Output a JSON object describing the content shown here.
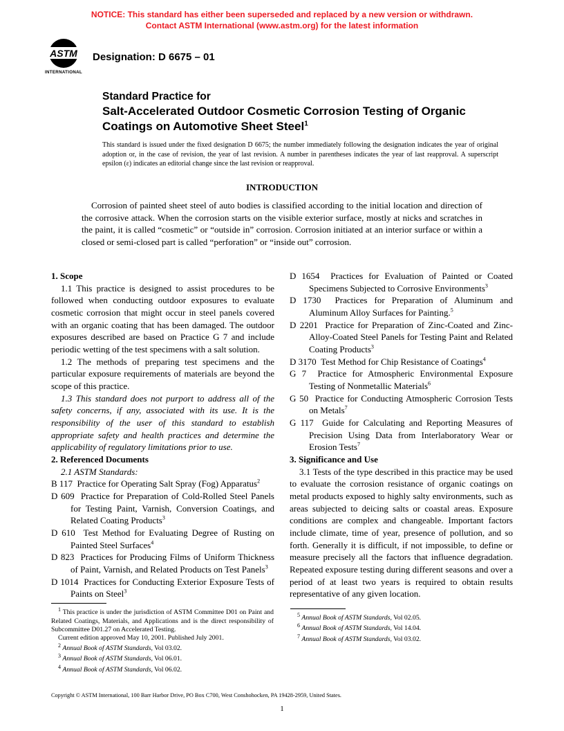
{
  "notice": {
    "line1": "NOTICE: This standard has either been superseded and replaced by a new version or withdrawn.",
    "line2": "Contact ASTM International (www.astm.org) for the latest information",
    "color": "#ec1b23"
  },
  "logo": {
    "top_text": "ASTM",
    "bottom_text": "INTERNATIONAL",
    "fill": "#000000"
  },
  "designation": "Designation: D 6675 – 01",
  "title": {
    "lead": "Standard Practice for",
    "main": "Salt-Accelerated Outdoor Cosmetic Corrosion Testing of Organic Coatings on Automotive Sheet Steel",
    "sup": "1"
  },
  "issuance": "This standard is issued under the fixed designation D 6675; the number immediately following the designation indicates the year of original adoption or, in the case of revision, the year of last revision. A number in parentheses indicates the year of last reapproval. A superscript epsilon (ε) indicates an editorial change since the last revision or reapproval.",
  "intro": {
    "head": "INTRODUCTION",
    "body": "Corrosion of painted sheet steel of auto bodies is classified according to the initial location and direction of the corrosive attack. When the corrosion starts on the visible exterior surface, mostly at nicks and scratches in the paint, it is called “cosmetic” or “outside in” corrosion. Corrosion initiated at an interior surface or within a closed or semi-closed part is called “perforation” or “inside out” corrosion."
  },
  "sections": {
    "scope": {
      "head": "1. Scope",
      "p1": "1.1 This practice is designed to assist procedures to be followed when conducting outdoor exposures to evaluate cosmetic corrosion that might occur in steel panels covered with an organic coating that has been damaged. The outdoor exposures described are based on Practice G 7 and include periodic wetting of the test specimens with a salt solution.",
      "p2": "1.2 The methods of preparing test specimens and the particular exposure requirements of materials are beyond the scope of this practice.",
      "p3": "1.3 This standard does not purport to address all of the safety concerns, if any, associated with its use. It is the responsibility of the user of this standard to establish appropriate safety and health practices and determine the applicability of regulatory limitations prior to use."
    },
    "refs": {
      "head": "2. Referenced Documents",
      "sub": "2.1 ASTM Standards:",
      "items": [
        {
          "code": "B 117",
          "text": "Practice for Operating Salt Spray (Fog) Apparatus",
          "sup": "2"
        },
        {
          "code": "D 609",
          "text": "Practice for Preparation of Cold-Rolled Steel Panels for Testing Paint, Varnish, Conversion Coatings, and Related Coating Products",
          "sup": "3"
        },
        {
          "code": "D 610",
          "text": "Test Method for Evaluating Degree of Rusting on Painted Steel Surfaces",
          "sup": "4"
        },
        {
          "code": "D 823",
          "text": "Practices for Producing Films of Uniform Thickness of Paint, Varnish, and Related Products on Test Panels",
          "sup": "3"
        },
        {
          "code": "D 1014",
          "text": "Practices for Conducting Exterior Exposure Tests of Paints on Steel",
          "sup": "3"
        },
        {
          "code": "D 1654",
          "text": "Practices for Evaluation of Painted or Coated Specimens Subjected to Corrosive Environments",
          "sup": "3"
        },
        {
          "code": "D 1730",
          "text": "Practices for Preparation of Aluminum and Aluminum Alloy Surfaces for Painting.",
          "sup": "5"
        },
        {
          "code": "D 2201",
          "text": "Practice for Preparation of Zinc-Coated and Zinc-Alloy-Coated Steel Panels for Testing Paint and Related Coating Products",
          "sup": "3"
        },
        {
          "code": "D 3170",
          "text": "Test Method for Chip Resistance of Coatings",
          "sup": "4"
        },
        {
          "code": "G 7",
          "text": "Practice for Atmospheric Environmental Exposure Testing of Nonmetallic Materials",
          "sup": "6"
        },
        {
          "code": "G 50",
          "text": "Practice for Conducting Atmospheric Corrosion Tests on Metals",
          "sup": "7"
        },
        {
          "code": "G 117",
          "text": "Guide for Calculating and Reporting Measures of Precision Using Data from Interlaboratory Wear or Erosion Tests",
          "sup": "7"
        }
      ]
    },
    "sig": {
      "head": "3. Significance and Use",
      "p1": "3.1 Tests of the type described in this practice may be used to evaluate the corrosion resistance of organic coatings on metal products exposed to highly salty environments, such as areas subjected to deicing salts or coastal areas. Exposure conditions are complex and changeable. Important factors include climate, time of year, presence of pollution, and so forth. Generally it is difficult, if not impossible, to define or measure precisely all the factors that influence degradation. Repeated exposure testing during different seasons and over a period of at least two years is required to obtain results representative of any given location."
    }
  },
  "footnotes_left": [
    {
      "n": "1",
      "text": "This practice is under the jurisdiction of ASTM Committee D01 on Paint and Related Coatings, Materials, and Applications and is the direct responsibility of Subcommittee D01.27 on Accelerated Testing."
    },
    {
      "n": "",
      "text": "Current edition approved May 10, 2001. Published July 2001."
    },
    {
      "n": "2",
      "text": "Annual Book of ASTM Standards, Vol 03.02.",
      "italic_lead": "Annual Book of ASTM Standards"
    },
    {
      "n": "3",
      "text": "Annual Book of ASTM Standards, Vol 06.01.",
      "italic_lead": "Annual Book of ASTM Standards"
    },
    {
      "n": "4",
      "text": "Annual Book of ASTM Standards, Vol 06.02.",
      "italic_lead": "Annual Book of ASTM Standards"
    }
  ],
  "footnotes_right": [
    {
      "n": "5",
      "text": "Annual Book of ASTM Standards, Vol 02.05.",
      "italic_lead": "Annual Book of ASTM Standards"
    },
    {
      "n": "6",
      "text": "Annual Book of ASTM Standards, Vol 14.04.",
      "italic_lead": "Annual Book of ASTM Standards"
    },
    {
      "n": "7",
      "text": "Annual Book of ASTM Standards, Vol 03.02.",
      "italic_lead": "Annual Book of ASTM Standards"
    }
  ],
  "copyright": "Copyright © ASTM International, 100 Barr Harbor Drive, PO Box C700, West Conshohocken, PA 19428-2959, United States.",
  "page_number": "1"
}
